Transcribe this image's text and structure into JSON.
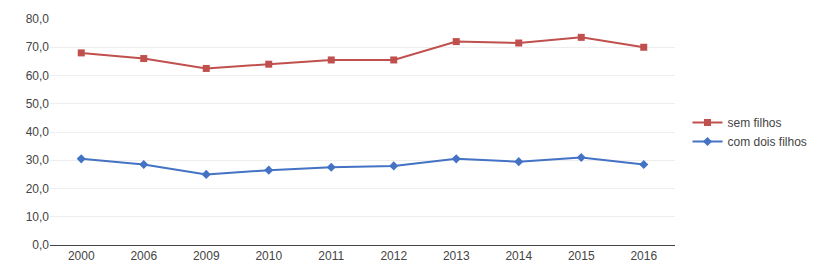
{
  "chart_data": {
    "type": "line",
    "categories": [
      "2000",
      "2006",
      "2009",
      "2010",
      "2011",
      "2012",
      "2013",
      "2014",
      "2015",
      "2016"
    ],
    "series": [
      {
        "name": "sem filhos",
        "color": "#C0504D",
        "marker": "square",
        "values": [
          68.0,
          66.0,
          62.5,
          64.0,
          65.5,
          65.5,
          72.0,
          71.5,
          73.5,
          70.0
        ]
      },
      {
        "name": "com dois filhos",
        "color": "#4472C4",
        "marker": "diamond",
        "values": [
          30.5,
          28.5,
          25.0,
          26.5,
          27.5,
          28.0,
          30.5,
          29.5,
          31.0,
          28.5
        ]
      }
    ],
    "ylim": [
      0,
      80
    ],
    "yticks": [
      {
        "value": 0,
        "label": "0,0"
      },
      {
        "value": 10,
        "label": "10,0"
      },
      {
        "value": 20,
        "label": "20,0"
      },
      {
        "value": 30,
        "label": "30,0"
      },
      {
        "value": 40,
        "label": "40,0"
      },
      {
        "value": 50,
        "label": "50,0"
      },
      {
        "value": 60,
        "label": "60,0"
      },
      {
        "value": 70,
        "label": "70,0"
      },
      {
        "value": 80,
        "label": "80,0"
      }
    ],
    "grid": true,
    "legend": "right"
  }
}
